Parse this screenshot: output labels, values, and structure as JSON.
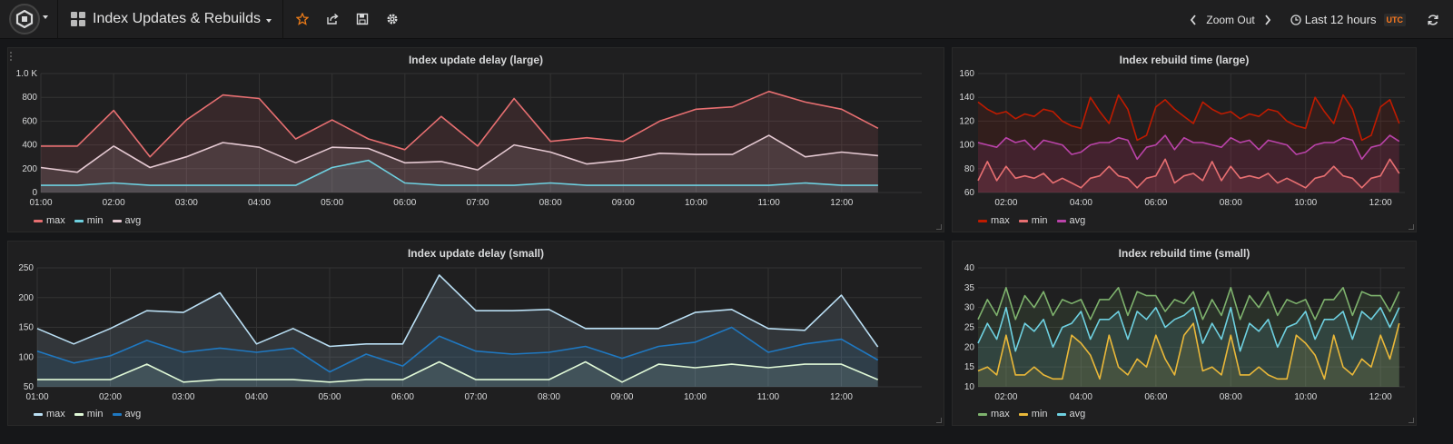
{
  "navbar": {
    "dashboard_title": "Index Updates & Rebuilds",
    "zoom_label": "Zoom Out",
    "time_range": "Last 12 hours",
    "timezone": "UTC",
    "accent": "#eb7b18"
  },
  "panels": [
    {
      "id": "large_update",
      "title": "Index update delay (large)",
      "legend": [
        "max",
        "min",
        "avg"
      ],
      "colors": [
        "#e76f71",
        "#6ed0e0",
        "#e5c9d2"
      ],
      "chart_data": {
        "type": "line",
        "title": "Index update delay (large)",
        "x_ticks": [
          "01:00",
          "02:00",
          "03:00",
          "04:00",
          "05:00",
          "06:00",
          "07:00",
          "08:00",
          "09:00",
          "10:00",
          "11:00",
          "12:00"
        ],
        "y_ticks": [
          "0",
          "200",
          "400",
          "600",
          "800",
          "1.0 K"
        ],
        "ylim": [
          0,
          1000
        ],
        "x": [
          1,
          1.5,
          2,
          2.5,
          3,
          3.5,
          4,
          4.5,
          5,
          5.5,
          6,
          6.5,
          7,
          7.5,
          8,
          8.5,
          9,
          9.5,
          10,
          10.5,
          11,
          11.5,
          12,
          12.5
        ],
        "xlim": [
          1,
          13.1
        ],
        "series": [
          {
            "name": "max",
            "values": [
              390,
              390,
              690,
              300,
              610,
              820,
              790,
              450,
              610,
              450,
              360,
              640,
              390,
              790,
              430,
              460,
              430,
              600,
              700,
              720,
              850,
              760,
              700,
              540
            ]
          },
          {
            "name": "min",
            "values": [
              60,
              60,
              80,
              60,
              60,
              60,
              60,
              60,
              210,
              270,
              80,
              60,
              60,
              60,
              80,
              60,
              60,
              60,
              60,
              60,
              60,
              80,
              60,
              60
            ]
          },
          {
            "name": "avg",
            "values": [
              210,
              170,
              390,
              210,
              300,
              420,
              380,
              250,
              380,
              370,
              250,
              260,
              190,
              400,
              340,
              240,
              270,
              330,
              320,
              320,
              480,
              300,
              340,
              310
            ]
          }
        ],
        "grid": true,
        "legend_position": "bottom-left"
      }
    },
    {
      "id": "large_rebuild",
      "title": "Index rebuild time (large)",
      "legend": [
        "max",
        "min",
        "avg"
      ],
      "colors": [
        "#bf1b00",
        "#e76f71",
        "#ba43a9"
      ],
      "chart_data": {
        "type": "line",
        "title": "Index rebuild time (large)",
        "x_ticks": [
          "02:00",
          "04:00",
          "06:00",
          "08:00",
          "10:00",
          "12:00"
        ],
        "y_ticks": [
          "60",
          "80",
          "100",
          "120",
          "140",
          "160"
        ],
        "ylim": [
          60,
          160
        ],
        "x": [
          1.25,
          1.5,
          1.75,
          2,
          2.25,
          2.5,
          2.75,
          3,
          3.25,
          3.5,
          3.75,
          4,
          4.25,
          4.5,
          4.75,
          5,
          5.25,
          5.5,
          5.75,
          6,
          6.25,
          6.5,
          6.75,
          7,
          7.25,
          7.5,
          7.75,
          8,
          8.25,
          8.5,
          8.75,
          9,
          9.25,
          9.5,
          9.75,
          10,
          10.25,
          10.5,
          10.75,
          11,
          11.25,
          11.5,
          11.75,
          12,
          12.25,
          12.5
        ],
        "xlim": [
          1.25,
          12.65
        ],
        "series": [
          {
            "name": "max",
            "values": [
              136,
              130,
              126,
              128,
              122,
              126,
              124,
              130,
              128,
              120,
              116,
              114,
              140,
              128,
              118,
              142,
              130,
              104,
              108,
              132,
              138,
              130,
              124,
              118,
              136,
              130,
              126,
              128,
              122,
              126,
              124,
              130,
              128,
              120,
              116,
              114,
              140,
              128,
              118,
              142,
              130,
              104,
              108,
              132,
              138,
              118
            ]
          },
          {
            "name": "min",
            "values": [
              70,
              86,
              70,
              82,
              72,
              74,
              72,
              76,
              68,
              72,
              68,
              64,
              72,
              74,
              82,
              74,
              72,
              64,
              72,
              74,
              88,
              68,
              74,
              76,
              70,
              86,
              70,
              82,
              72,
              74,
              72,
              76,
              68,
              72,
              68,
              64,
              72,
              74,
              82,
              74,
              72,
              64,
              72,
              74,
              88,
              76
            ]
          },
          {
            "name": "avg",
            "values": [
              102,
              100,
              98,
              106,
              102,
              104,
              96,
              104,
              102,
              100,
              92,
              94,
              100,
              102,
              102,
              106,
              104,
              88,
              98,
              100,
              108,
              96,
              106,
              102,
              102,
              100,
              98,
              106,
              102,
              104,
              96,
              104,
              102,
              100,
              92,
              94,
              100,
              102,
              102,
              106,
              104,
              88,
              98,
              100,
              108,
              103
            ]
          }
        ],
        "grid": true,
        "legend_position": "bottom-left"
      }
    },
    {
      "id": "small_update",
      "title": "Index update delay (small)",
      "legend": [
        "max",
        "min",
        "avg"
      ],
      "colors": [
        "#badff4",
        "#e0f9d7",
        "#1f78c1"
      ],
      "chart_data": {
        "type": "line",
        "title": "Index update delay (small)",
        "x_ticks": [
          "01:00",
          "02:00",
          "03:00",
          "04:00",
          "05:00",
          "06:00",
          "07:00",
          "08:00",
          "09:00",
          "10:00",
          "11:00",
          "12:00"
        ],
        "y_ticks": [
          "50",
          "100",
          "150",
          "200",
          "250"
        ],
        "ylim": [
          50,
          250
        ],
        "x": [
          1,
          1.5,
          2,
          2.5,
          3,
          3.5,
          4,
          4.5,
          5,
          5.5,
          6,
          6.5,
          7,
          7.5,
          8,
          8.5,
          9,
          9.5,
          10,
          10.5,
          11,
          11.5,
          12,
          12.5
        ],
        "xlim": [
          1,
          13.1
        ],
        "series": [
          {
            "name": "max",
            "values": [
              148,
              122,
              148,
              178,
              175,
              208,
              122,
              148,
              118,
              122,
              122,
              238,
              178,
              178,
              180,
              148,
              148,
              148,
              175,
              180,
              148,
              145,
              204,
              117
            ]
          },
          {
            "name": "min",
            "values": [
              62,
              62,
              62,
              88,
              58,
              62,
              62,
              62,
              58,
              62,
              62,
              92,
              62,
              62,
              62,
              92,
              58,
              88,
              82,
              88,
              82,
              88,
              88,
              62
            ]
          },
          {
            "name": "avg",
            "values": [
              110,
              90,
              102,
              128,
              108,
              115,
              108,
              115,
              75,
              105,
              85,
              135,
              110,
              105,
              108,
              118,
              98,
              118,
              125,
              150,
              108,
              122,
              130,
              95
            ]
          }
        ],
        "grid": true,
        "legend_position": "bottom-left"
      }
    },
    {
      "id": "small_rebuild",
      "title": "Index rebuild time (small)",
      "legend": [
        "max",
        "min",
        "avg"
      ],
      "colors": [
        "#7eb26d",
        "#eab839",
        "#6ed0e0"
      ],
      "chart_data": {
        "type": "line",
        "title": "Index rebuild time (small)",
        "x_ticks": [
          "02:00",
          "04:00",
          "06:00",
          "08:00",
          "10:00",
          "12:00"
        ],
        "y_ticks": [
          "10",
          "15",
          "20",
          "25",
          "30",
          "35",
          "40"
        ],
        "ylim": [
          10,
          40
        ],
        "x": [
          1.25,
          1.5,
          1.75,
          2,
          2.25,
          2.5,
          2.75,
          3,
          3.25,
          3.5,
          3.75,
          4,
          4.25,
          4.5,
          4.75,
          5,
          5.25,
          5.5,
          5.75,
          6,
          6.25,
          6.5,
          6.75,
          7,
          7.25,
          7.5,
          7.75,
          8,
          8.25,
          8.5,
          8.75,
          9,
          9.25,
          9.5,
          9.75,
          10,
          10.25,
          10.5,
          10.75,
          11,
          11.25,
          11.5,
          11.75,
          12,
          12.25,
          12.5
        ],
        "xlim": [
          1.25,
          12.65
        ],
        "series": [
          {
            "name": "max",
            "values": [
              27,
              32,
              28,
              35,
              27,
              33,
              30,
              34,
              28,
              32,
              31,
              32,
              27,
              32,
              32,
              35,
              28,
              34,
              33,
              33,
              29,
              32,
              31,
              34,
              27,
              32,
              28,
              35,
              27,
              33,
              30,
              34,
              28,
              32,
              31,
              32,
              27,
              32,
              32,
              35,
              28,
              34,
              33,
              33,
              29,
              34
            ]
          },
          {
            "name": "min",
            "values": [
              14,
              15,
              13,
              23,
              13,
              13,
              15,
              13,
              12,
              12,
              23,
              21,
              18,
              12,
              23,
              15,
              13,
              17,
              15,
              23,
              17,
              13,
              23,
              26,
              14,
              15,
              13,
              23,
              13,
              13,
              15,
              13,
              12,
              12,
              23,
              21,
              18,
              12,
              23,
              15,
              13,
              17,
              15,
              23,
              17,
              26
            ]
          },
          {
            "name": "avg",
            "values": [
              21,
              26,
              22,
              30,
              19,
              26,
              24,
              27,
              20,
              25,
              26,
              29,
              22,
              27,
              27,
              29,
              22,
              29,
              27,
              30,
              25,
              27,
              28,
              30,
              21,
              26,
              22,
              30,
              19,
              26,
              24,
              27,
              20,
              25,
              26,
              29,
              22,
              27,
              27,
              29,
              22,
              29,
              27,
              30,
              25,
              30
            ]
          }
        ],
        "grid": true,
        "legend_position": "bottom-left"
      }
    }
  ]
}
